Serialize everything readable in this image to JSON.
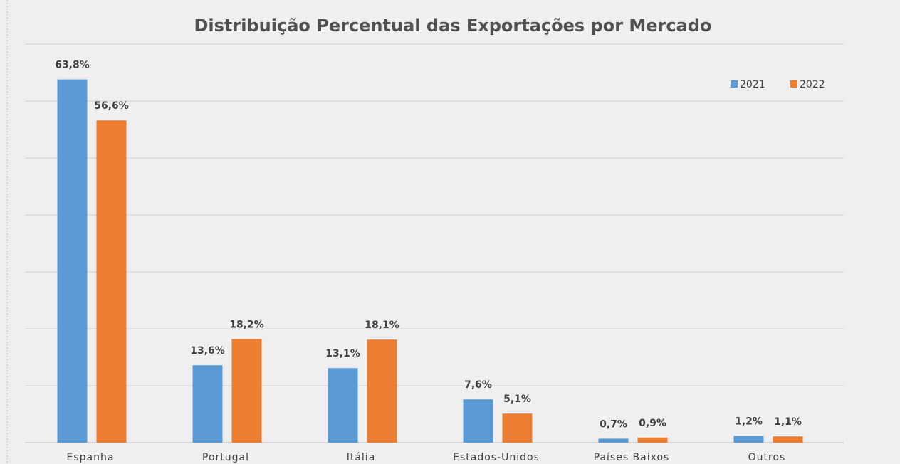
{
  "chart_data": {
    "type": "bar",
    "title": "Distribuição Percentual das Exportações por Mercado",
    "categories": [
      "Espanha",
      "Portugal",
      "Itália",
      "Estados-Unidos",
      "Países Baixos",
      "Outros"
    ],
    "series": [
      {
        "name": "2021",
        "color": "#5b9bd5",
        "values": [
          63.8,
          13.6,
          13.1,
          7.6,
          0.7,
          1.2
        ],
        "value_labels": [
          "63,8%",
          "13,6%",
          "13,1%",
          "7,6%",
          "0,7%",
          "1,2%"
        ]
      },
      {
        "name": "2022",
        "color": "#ed7d31",
        "values": [
          56.6,
          18.2,
          18.1,
          5.1,
          0.9,
          1.1
        ],
        "value_labels": [
          "56,6%",
          "18,2%",
          "18,1%",
          "5,1%",
          "0,9%",
          "1,1%"
        ]
      }
    ],
    "ylim": [
      0,
      70
    ],
    "yticks": [
      0,
      10,
      20,
      30,
      40,
      50,
      60,
      70
    ],
    "grid": true,
    "legend": "top-right"
  }
}
